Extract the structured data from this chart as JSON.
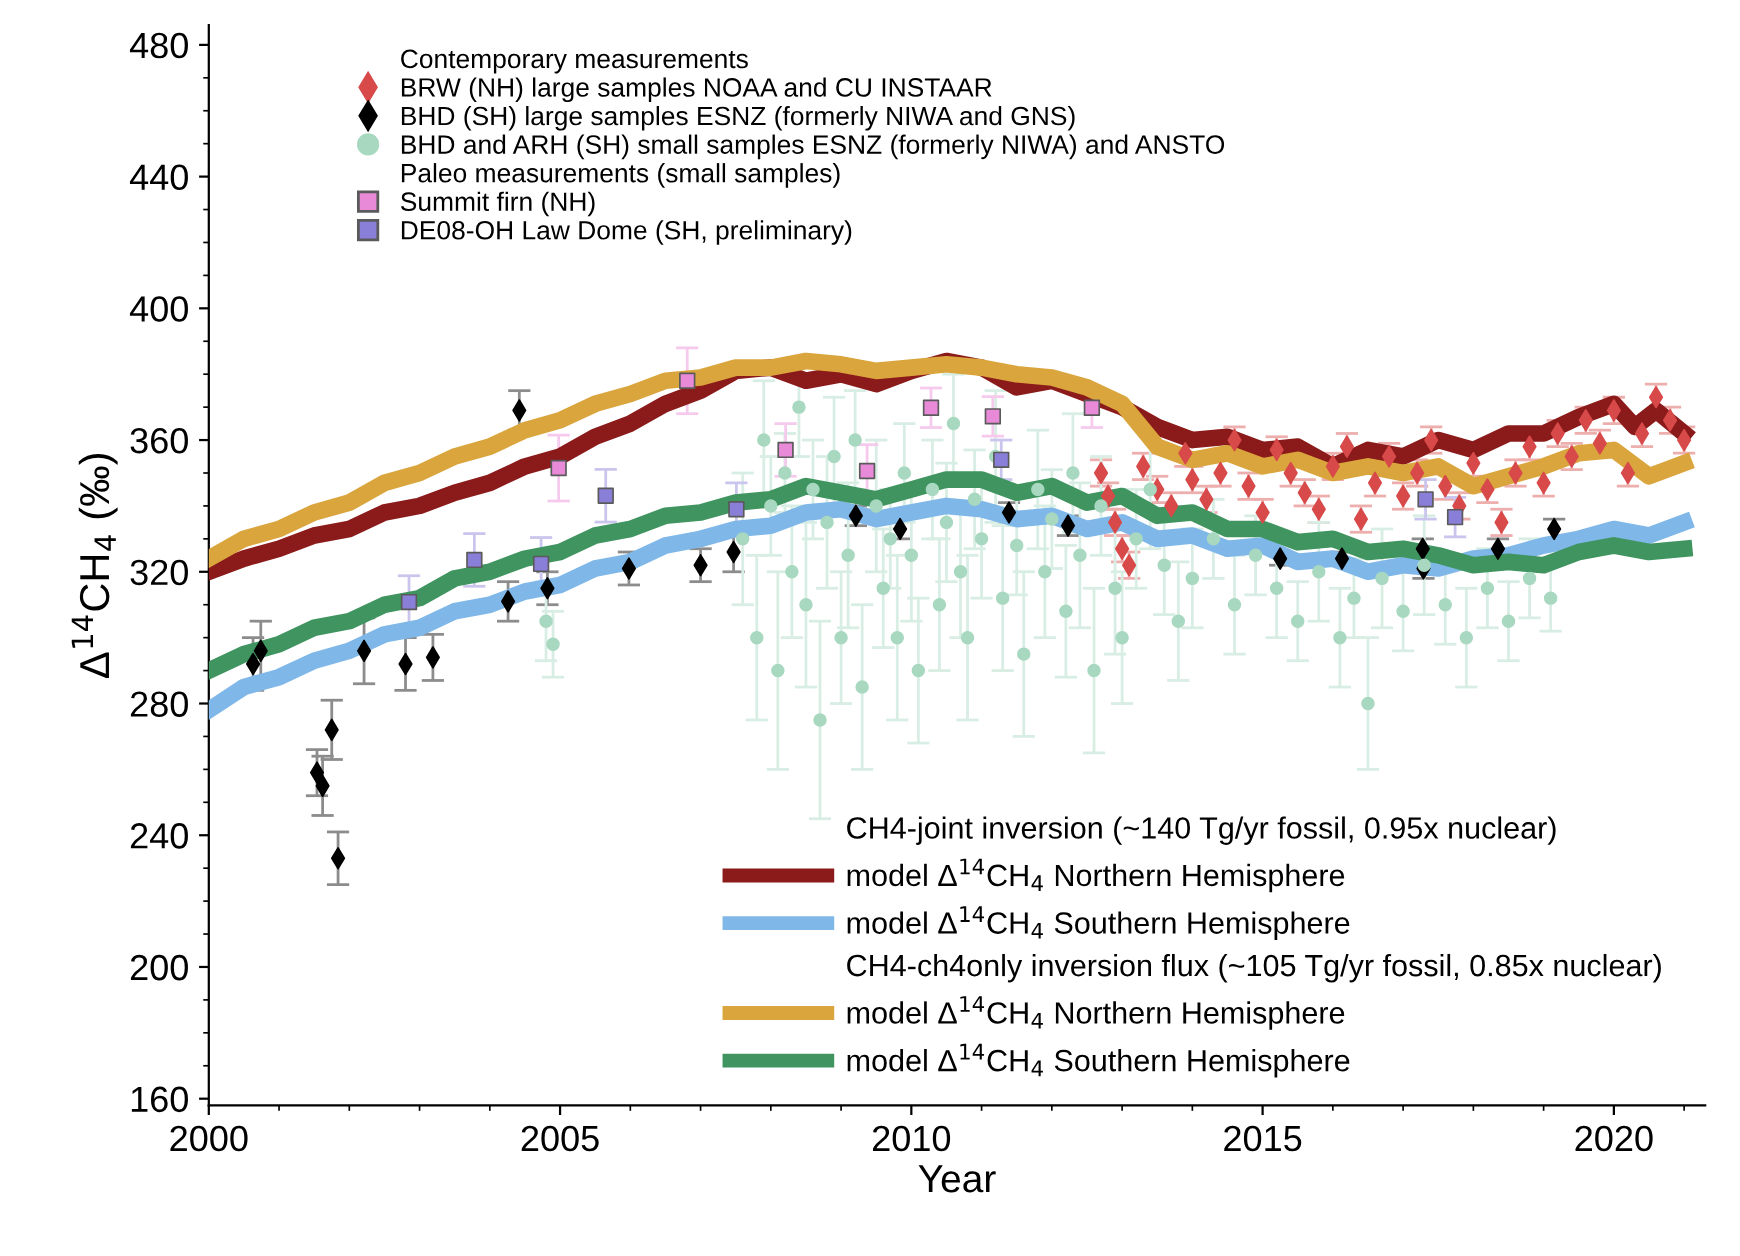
{
  "chart_data": {
    "type": "line",
    "xlabel": "Year",
    "ylabel": "Δ$^{14}$CH$_{4}$ (‰)",
    "xlim": [
      2000,
      2021.3
    ],
    "xticks": [
      2000,
      2005,
      2010,
      2015,
      2020
    ],
    "ylim": [
      158,
      486
    ],
    "yticks": [
      160,
      200,
      240,
      280,
      320,
      360,
      400,
      440,
      480
    ],
    "grid": false,
    "legend": "left",
    "annotations": [
      "Contemporary measurements",
      "Paleo measurements (small samples)",
      "CH4-joint inversion (~140 Tg/yr fossil, 0.95x nuclear)",
      "CH4-ch4only inversion flux (~105 Tg/yr fossil, 0.85x nuclear)"
    ],
    "series": [
      {
        "name": "BRW (NH) large samples NOAA and CU INSTAAR",
        "type": "scatter",
        "marker": "diamond",
        "color": "#d84a4a",
        "x": [
          2012.7,
          2012.8,
          2012.9,
          2013.0,
          2013.1,
          2013.3,
          2013.5,
          2013.7,
          2013.9,
          2014.0,
          2014.2,
          2014.4,
          2014.6,
          2014.8,
          2015.0,
          2015.2,
          2015.4,
          2015.6,
          2015.8,
          2016.0,
          2016.2,
          2016.4,
          2016.6,
          2016.8,
          2017.0,
          2017.2,
          2017.4,
          2017.6,
          2017.8,
          2018.0,
          2018.2,
          2018.4,
          2018.6,
          2018.8,
          2019.0,
          2019.2,
          2019.4,
          2019.6,
          2019.8,
          2020.0,
          2020.2,
          2020.4,
          2020.6,
          2020.8,
          2021.0
        ],
        "values": [
          350,
          343,
          335,
          327,
          322,
          352,
          345,
          340,
          356,
          348,
          342,
          350,
          360,
          346,
          338,
          357,
          350,
          344,
          339,
          352,
          358,
          336,
          347,
          355,
          343,
          350,
          360,
          346,
          340,
          353,
          345,
          335,
          350,
          358,
          347,
          362,
          355,
          366,
          359,
          369,
          350,
          362,
          373,
          366,
          360
        ],
        "errors": [
          4,
          4,
          4,
          4,
          4,
          4,
          4,
          4,
          4,
          4,
          4,
          4,
          4,
          4,
          4,
          4,
          4,
          4,
          4,
          4,
          4,
          4,
          4,
          4,
          4,
          4,
          4,
          4,
          4,
          4,
          4,
          4,
          4,
          4,
          4,
          4,
          4,
          4,
          4,
          4,
          4,
          4,
          4,
          4,
          4
        ]
      },
      {
        "name": "BHD (SH) large samples ESNZ (formerly NIWA and GNS)",
        "type": "scatter",
        "marker": "diamond",
        "color": "#000000",
        "x": [
          2000.63,
          2000.74,
          2001.54,
          2001.62,
          2001.75,
          2001.84,
          2002.21,
          2002.8,
          2003.19,
          2004.26,
          2004.42,
          2004.82,
          2005.98,
          2007.0,
          2007.47,
          2009.21,
          2009.84,
          2011.39,
          2012.23,
          2015.25,
          2016.13,
          2017.28,
          2017.29,
          2018.35,
          2019.15
        ],
        "values": [
          292,
          296,
          259,
          255,
          272,
          233,
          296,
          292,
          294,
          311,
          369,
          315,
          321,
          322,
          326,
          337,
          333,
          338,
          334,
          324,
          324,
          327,
          321,
          327,
          333
        ],
        "errors": [
          8,
          9,
          7,
          9,
          9,
          8,
          10,
          8,
          7,
          6,
          6,
          5,
          5,
          5,
          6,
          3,
          3,
          3,
          3,
          2,
          2,
          3,
          3,
          3,
          3
        ]
      },
      {
        "name": "BHD and ARH (SH) small samples ESNZ (formerly NIWA) and ANSTO",
        "type": "scatter",
        "marker": "circle",
        "color": "#a8d8c0",
        "x": [
          2004.8,
          2004.9,
          2007.6,
          2007.8,
          2007.9,
          2008.0,
          2008.1,
          2008.2,
          2008.3,
          2008.4,
          2008.5,
          2008.6,
          2008.7,
          2008.8,
          2008.9,
          2009.0,
          2009.1,
          2009.2,
          2009.3,
          2009.5,
          2009.6,
          2009.7,
          2009.8,
          2009.9,
          2010.0,
          2010.1,
          2010.3,
          2010.4,
          2010.5,
          2010.6,
          2010.7,
          2010.8,
          2010.9,
          2011.0,
          2011.2,
          2011.3,
          2011.5,
          2011.6,
          2011.8,
          2011.9,
          2012.0,
          2012.2,
          2012.3,
          2012.4,
          2012.6,
          2012.7,
          2012.9,
          2013.0,
          2013.2,
          2013.4,
          2013.6,
          2013.8,
          2014.0,
          2014.3,
          2014.6,
          2014.9,
          2015.2,
          2015.5,
          2015.8,
          2016.1,
          2016.3,
          2016.5,
          2016.7,
          2017.0,
          2017.3,
          2017.6,
          2017.9,
          2018.2,
          2018.5,
          2018.8,
          2019.1
        ],
        "values": [
          305,
          298,
          330,
          300,
          360,
          340,
          290,
          350,
          320,
          370,
          310,
          345,
          275,
          335,
          355,
          300,
          325,
          360,
          285,
          340,
          315,
          330,
          300,
          350,
          325,
          290,
          345,
          310,
          335,
          365,
          320,
          300,
          342,
          330,
          355,
          312,
          328,
          295,
          345,
          320,
          336,
          308,
          350,
          325,
          290,
          340,
          315,
          300,
          330,
          345,
          322,
          305,
          318,
          330,
          310,
          325,
          315,
          305,
          320,
          300,
          312,
          280,
          318,
          308,
          322,
          310,
          300,
          315,
          305,
          318,
          312
        ],
        "errors": [
          12,
          10,
          20,
          25,
          18,
          15,
          30,
          12,
          20,
          15,
          25,
          15,
          30,
          20,
          18,
          20,
          22,
          15,
          25,
          20,
          18,
          15,
          25,
          15,
          20,
          22,
          15,
          20,
          18,
          15,
          20,
          25,
          15,
          18,
          20,
          22,
          15,
          25,
          18,
          20,
          15,
          20,
          18,
          22,
          25,
          15,
          20,
          20,
          15,
          18,
          15,
          18,
          15,
          12,
          15,
          12,
          15,
          12,
          15,
          15,
          12,
          20,
          15,
          12,
          15,
          12,
          15,
          12,
          12,
          12,
          10
        ]
      },
      {
        "name": "Summit firn (NH)",
        "type": "scatter",
        "marker": "square",
        "color": "#e88ad8",
        "x": [
          2004.98,
          2006.81,
          2008.21,
          2009.37,
          2010.28,
          2011.16,
          2012.57
        ],
        "values": [
          351.5,
          378,
          357,
          350.6,
          369.8,
          367.2,
          369.8
        ],
        "errors": [
          10,
          10,
          8,
          8,
          6,
          6,
          6
        ]
      },
      {
        "name": "DE08-OH Law Dome (SH, preliminary)",
        "type": "scatter",
        "marker": "square",
        "color": "#8a7fd8",
        "x": [
          2002.85,
          2003.78,
          2004.73,
          2005.65,
          2007.51,
          2011.28,
          2017.32,
          2017.74
        ],
        "values": [
          310.8,
          323.6,
          322.4,
          343.1,
          339,
          354,
          342,
          336.6
        ],
        "errors": [
          8,
          8,
          8,
          8,
          8,
          6,
          6,
          6
        ]
      },
      {
        "name": "model Δ$^{14}$CH$_{4}$ Northern Hemisphere",
        "marker": "none",
        "color": "#8b1a1a",
        "x": [
          2000,
          2000.5,
          2001,
          2001.5,
          2002,
          2002.5,
          2003,
          2003.5,
          2004,
          2004.5,
          2005,
          2005.5,
          2006,
          2006.5,
          2007,
          2007.5,
          2008,
          2008.5,
          2009,
          2009.5,
          2010,
          2010.5,
          2011,
          2011.5,
          2012,
          2012.5,
          2013,
          2013.5,
          2014,
          2014.5,
          2015,
          2015.5,
          2016,
          2016.5,
          2017,
          2017.5,
          2018,
          2018.5,
          2019,
          2019.5,
          2020,
          2020.3,
          2020.6,
          2021
        ],
        "values": [
          320,
          324,
          327,
          331,
          333,
          338,
          340,
          344,
          347,
          352,
          355,
          361,
          365,
          371,
          375,
          381,
          382,
          378,
          380,
          377,
          381,
          384,
          382,
          376,
          378,
          374,
          370,
          364,
          360,
          361,
          357,
          358,
          352,
          357,
          355,
          360,
          357,
          362,
          362,
          367,
          371,
          364,
          369,
          362
        ]
      },
      {
        "name": "model Δ$^{14}$CH$_{4}$ Southern Hemisphere",
        "marker": "none",
        "color": "#7fb8e8",
        "x": [
          2000,
          2000.5,
          2001,
          2001.5,
          2002,
          2002.5,
          2003,
          2003.5,
          2004,
          2004.5,
          2005,
          2005.5,
          2006,
          2006.5,
          2007,
          2007.5,
          2008,
          2008.5,
          2009,
          2009.5,
          2010,
          2010.5,
          2011,
          2011.5,
          2012,
          2012.5,
          2013,
          2013.5,
          2014,
          2014.5,
          2015,
          2015.5,
          2016,
          2016.5,
          2017,
          2017.5,
          2018,
          2018.5,
          2019,
          2019.5,
          2020,
          2020.5,
          2021
        ],
        "values": [
          278,
          285,
          288,
          293,
          296,
          301,
          303,
          308,
          310,
          314,
          316,
          321,
          323,
          328,
          330,
          333,
          334,
          338,
          339,
          336,
          338,
          340,
          339,
          336,
          337,
          333,
          335,
          330,
          331,
          327,
          328,
          323,
          324,
          320,
          322,
          321,
          324,
          325,
          328,
          330,
          333,
          331,
          335
        ]
      },
      {
        "name": "model Δ$^{14}$CH$_{4}$ Northern Hemisphere",
        "marker": "none",
        "color": "#daa53c",
        "x": [
          2000,
          2000.5,
          2001,
          2001.5,
          2002,
          2002.5,
          2003,
          2003.5,
          2004,
          2004.5,
          2005,
          2005.5,
          2006,
          2006.5,
          2007,
          2007.5,
          2008,
          2008.5,
          2009,
          2009.5,
          2010,
          2010.5,
          2011,
          2011.5,
          2012,
          2012.5,
          2013,
          2013.5,
          2014,
          2014.5,
          2015,
          2015.5,
          2016,
          2016.5,
          2017,
          2017.5,
          2018,
          2018.5,
          2019,
          2019.5,
          2020,
          2020.5,
          2021
        ],
        "values": [
          324,
          330,
          333,
          338,
          341,
          347,
          350,
          355,
          358,
          363,
          366,
          371,
          374,
          378,
          379,
          382,
          382,
          384,
          383,
          381,
          382,
          383,
          382,
          380,
          379,
          376,
          371,
          358,
          354,
          356,
          352,
          354,
          350,
          352,
          350,
          352,
          346,
          349,
          352,
          356,
          357,
          349,
          353
        ]
      },
      {
        "name": "model Δ$^{14}$CH$_{4}$ Southern Hemisphere",
        "marker": "none",
        "color": "#3f9460",
        "x": [
          2000,
          2000.5,
          2001,
          2001.5,
          2002,
          2002.5,
          2003,
          2003.5,
          2004,
          2004.5,
          2005,
          2005.5,
          2006,
          2006.5,
          2007,
          2007.5,
          2008,
          2008.5,
          2009,
          2009.5,
          2010,
          2010.5,
          2011,
          2011.5,
          2012,
          2012.5,
          2013,
          2013.5,
          2014,
          2014.5,
          2015,
          2015.5,
          2016,
          2016.5,
          2017,
          2017.5,
          2018,
          2018.5,
          2019,
          2019.5,
          2020,
          2020.5,
          2021
        ],
        "values": [
          290,
          295,
          298,
          303,
          305,
          310,
          312,
          318,
          320,
          324,
          326,
          331,
          333,
          337,
          338,
          341,
          342,
          346,
          344,
          342,
          345,
          348,
          348,
          344,
          346,
          341,
          343,
          337,
          338,
          333,
          333,
          329,
          330,
          326,
          327,
          325,
          322,
          323,
          322,
          326,
          328,
          326,
          327
        ]
      }
    ]
  }
}
